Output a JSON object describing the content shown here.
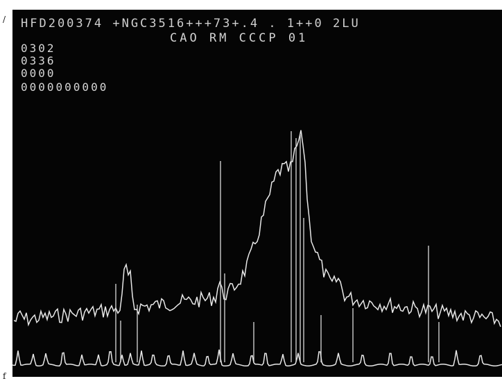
{
  "margin_marks": {
    "top": "/",
    "bottom": "f"
  },
  "display": {
    "header": "HFD200374  +NGC3516+++73+.4   .   1++0 2LU",
    "subheader": "CAO RM CCCP    01"
  },
  "counters": {
    "line1": "0302",
    "line2": "0336",
    "line3": "0000",
    "line4": "0000000000"
  },
  "colors": {
    "screen_background": "#050505",
    "trace": "#e8e8e8",
    "text": "#d0d0d0"
  }
}
